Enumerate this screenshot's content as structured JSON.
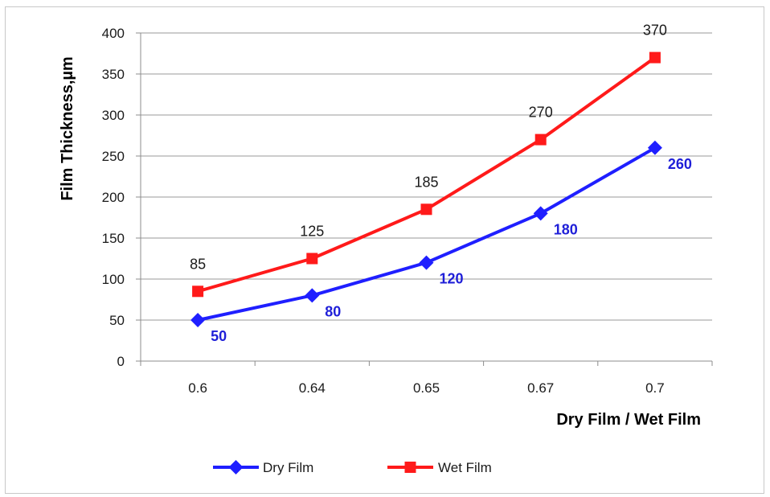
{
  "chart_data": {
    "type": "line",
    "title": "",
    "xlabel": "Dry Film / Wet Film",
    "ylabel": "Film Thickness,µm",
    "categories": [
      "0.6",
      "0.64",
      "0.65",
      "0.67",
      "0.7"
    ],
    "ylim": [
      0,
      400
    ],
    "yticks": [
      0,
      50,
      100,
      150,
      200,
      250,
      300,
      350,
      400
    ],
    "grid": true,
    "legend_position": "bottom",
    "series": [
      {
        "name": "Dry Film",
        "values": [
          50,
          80,
          120,
          180,
          260
        ],
        "data_labels": [
          "50",
          "80",
          "120",
          "180",
          "260"
        ],
        "color": "#1f1fff",
        "label_color": "#1f1fd8",
        "marker": "diamond"
      },
      {
        "name": "Wet Film",
        "values": [
          85,
          125,
          185,
          270,
          370
        ],
        "data_labels": [
          "85",
          "125",
          "185",
          "270",
          "370"
        ],
        "color": "#ff1a1a",
        "label_color": "#1a1a1a",
        "marker": "square"
      }
    ]
  }
}
